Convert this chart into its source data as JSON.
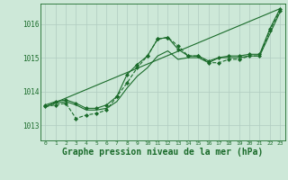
{
  "background_color": "#cde8d8",
  "grid_color": "#b0ccc0",
  "line_color": "#1a6b2a",
  "xlabel": "Graphe pression niveau de la mer (hPa)",
  "xlabel_color": "#1a6b2a",
  "xlabel_fontsize": 7,
  "ytick_labels": [
    "1013",
    "1014",
    "1015",
    "1016"
  ],
  "yticks": [
    1013,
    1014,
    1015,
    1016
  ],
  "xlim": [
    -0.5,
    23.5
  ],
  "ylim": [
    1012.55,
    1016.6
  ],
  "series": [
    {
      "x": [
        0,
        1,
        2,
        3,
        4,
        5,
        6,
        7,
        8,
        9,
        10,
        11,
        12,
        13,
        14,
        15,
        16,
        17,
        18,
        19,
        20,
        21,
        22,
        23
      ],
      "y": [
        1013.6,
        1013.7,
        1013.75,
        1013.65,
        1013.5,
        1013.5,
        1013.6,
        1013.85,
        1014.5,
        1014.8,
        1015.05,
        1015.55,
        1015.6,
        1015.25,
        1015.05,
        1015.05,
        1014.9,
        1015.0,
        1015.05,
        1015.05,
        1015.1,
        1015.1,
        1015.85,
        1016.45
      ],
      "marker": "D",
      "markersize": 2.0,
      "linewidth": 0.8,
      "linestyle": "-"
    },
    {
      "x": [
        0,
        1,
        2,
        3,
        4,
        5,
        6,
        7,
        8,
        9,
        10,
        11,
        12,
        13,
        14,
        15,
        16,
        17,
        18,
        19,
        20,
        21,
        22,
        23
      ],
      "y": [
        1013.55,
        1013.6,
        1013.65,
        1013.2,
        1013.3,
        1013.35,
        1013.45,
        1013.85,
        1014.25,
        1014.7,
        1015.05,
        1015.55,
        1015.6,
        1015.35,
        1015.05,
        1015.05,
        1014.85,
        1014.85,
        1014.95,
        1014.95,
        1015.05,
        1015.05,
        1015.8,
        1016.4
      ],
      "marker": "D",
      "markersize": 2.0,
      "linewidth": 0.8,
      "linestyle": "--"
    },
    {
      "x": [
        0,
        1,
        2,
        3,
        4,
        5,
        6,
        7,
        8,
        9,
        10,
        11,
        12,
        13,
        14,
        15,
        16,
        17,
        18,
        19,
        20,
        21,
        22,
        23
      ],
      "y": [
        1013.55,
        1013.65,
        1013.7,
        1013.6,
        1013.45,
        1013.45,
        1013.5,
        1013.7,
        1014.1,
        1014.45,
        1014.7,
        1015.05,
        1015.2,
        1014.95,
        1015.0,
        1015.0,
        1014.85,
        1015.0,
        1015.0,
        1015.0,
        1015.05,
        1015.05,
        1015.7,
        1016.35
      ],
      "marker": null,
      "markersize": 0,
      "linewidth": 0.8,
      "linestyle": "-"
    },
    {
      "x": [
        0,
        23
      ],
      "y": [
        1013.55,
        1016.45
      ],
      "marker": null,
      "markersize": 0,
      "linewidth": 0.8,
      "linestyle": "-"
    }
  ]
}
